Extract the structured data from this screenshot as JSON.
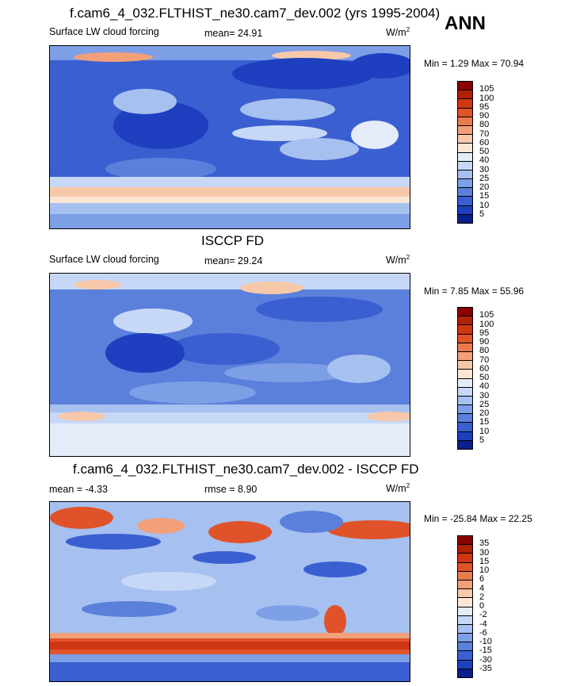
{
  "season": "ANN",
  "panels": [
    {
      "title": "f.cam6_4_032.FLTHIST_ne30.cam7_dev.002 (yrs 1995-2004)",
      "left_label": "Surface LW cloud forcing",
      "center_label": "mean=  24.91",
      "units": "W/m",
      "units_exp": "2",
      "minmax": "Min =   1.29 Max =  70.94",
      "colorbar": {
        "ticks": [
          "105",
          "100",
          "95",
          "90",
          "80",
          "70",
          "60",
          "50",
          "40",
          "30",
          "25",
          "20",
          "15",
          "10",
          "5"
        ],
        "colors": [
          "#8b0000",
          "#b11f05",
          "#cf3613",
          "#e0532a",
          "#ea7b4e",
          "#f2a07a",
          "#f7c8a9",
          "#fbe6d6",
          "#e4ecfa",
          "#c7d8f6",
          "#a6c0f0",
          "#7d9fe6",
          "#5a80db",
          "#3a5fd1",
          "#1e3fbf",
          "#0a1e8c"
        ]
      }
    },
    {
      "title": "ISCCP FD",
      "left_label": "Surface LW cloud forcing",
      "center_label": "mean=  29.24",
      "units": "W/m",
      "units_exp": "2",
      "minmax": "Min =   7.85 Max =  55.96",
      "colorbar": {
        "ticks": [
          "105",
          "100",
          "95",
          "90",
          "80",
          "70",
          "60",
          "50",
          "40",
          "30",
          "25",
          "20",
          "15",
          "10",
          "5"
        ],
        "colors": [
          "#8b0000",
          "#b11f05",
          "#cf3613",
          "#e0532a",
          "#ea7b4e",
          "#f2a07a",
          "#f7c8a9",
          "#fbe6d6",
          "#e4ecfa",
          "#c7d8f6",
          "#a6c0f0",
          "#7d9fe6",
          "#5a80db",
          "#3a5fd1",
          "#1e3fbf",
          "#0a1e8c"
        ]
      }
    },
    {
      "title": "f.cam6_4_032.FLTHIST_ne30.cam7_dev.002 - ISCCP FD",
      "left_label": "mean =  -4.33",
      "center_label": "rmse =   8.90",
      "units": "W/m",
      "units_exp": "2",
      "minmax": "Min = -25.84 Max =  22.25",
      "colorbar": {
        "ticks": [
          "35",
          "30",
          "15",
          "10",
          "6",
          "4",
          "2",
          "0",
          "-2",
          "-4",
          "-6",
          "-10",
          "-15",
          "-30",
          "-35"
        ],
        "colors": [
          "#8b0000",
          "#b11f05",
          "#cf3613",
          "#e0532a",
          "#ea7b4e",
          "#f2a07a",
          "#f7c8a9",
          "#fbe6d6",
          "#e4ecfa",
          "#c7d8f6",
          "#a6c0f0",
          "#7d9fe6",
          "#5a80db",
          "#3a5fd1",
          "#1e3fbf",
          "#0a1e8c"
        ]
      }
    }
  ]
}
